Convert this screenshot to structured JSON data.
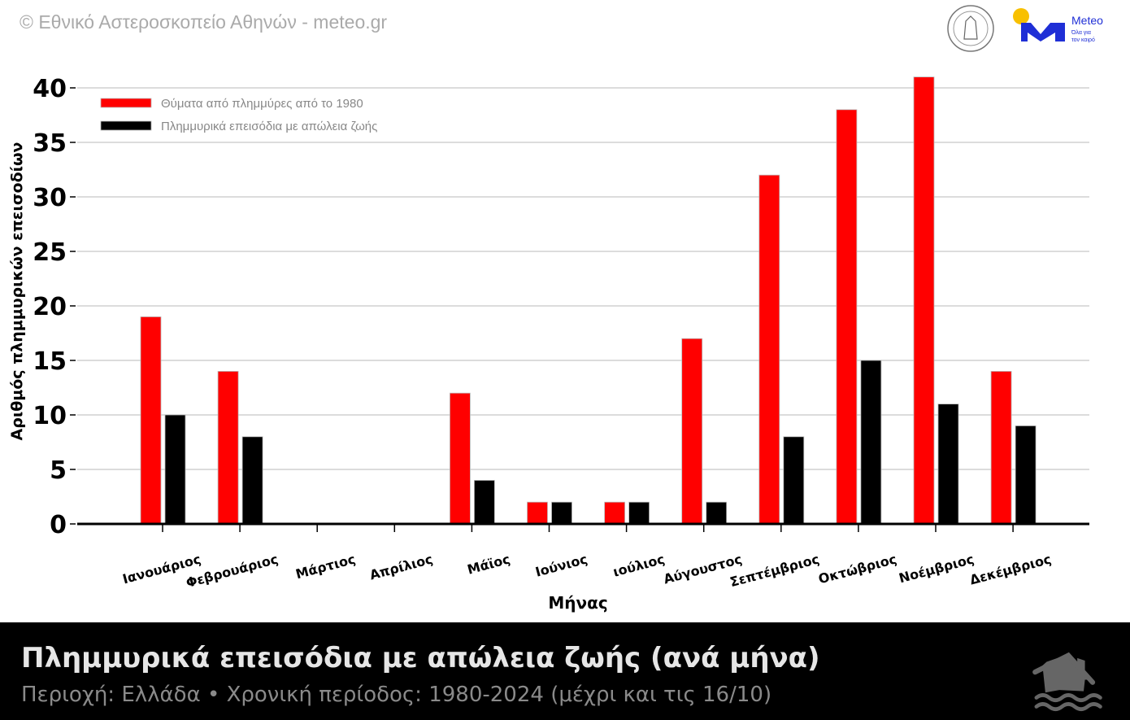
{
  "copyright": "© Εθνικό Αστεροσκοπείο Αθηνών - meteo.gr",
  "logos": {
    "observatory": "National Observatory of Athens",
    "meteo_name": "Meteo",
    "meteo_tagline_1": "Όλα για",
    "meteo_tagline_2": "τον καιρό"
  },
  "footer": {
    "title": "Πλημμυρικά επεισόδια με απώλεια ζωής (ανά μήνα)",
    "subtitle": "Περιοχή: Ελλάδα • Χρονική περίοδος: 1980-2024 (μέχρι και τις 16/10)",
    "icon": "flooded-house-icon"
  },
  "chart_data": {
    "type": "bar",
    "xlabel": "Μήνας",
    "ylabel": "Αριθμός πλημμυρικών επεισοδίων",
    "ylim": [
      0,
      40
    ],
    "yticks": [
      0,
      5,
      10,
      15,
      20,
      25,
      30,
      35,
      40
    ],
    "grid": true,
    "legend_position": "top-left",
    "categories": [
      "Ιανουάριος",
      "Φεβρουάριος",
      "Μάρτιος",
      "Απρίλιος",
      "Μάϊος",
      "Ιούνιος",
      "ιούλιος",
      "Αύγουστος",
      "Σεπτέμβριος",
      "Οκτώβριος",
      "Νοέμβριος",
      "Δεκέμβριος"
    ],
    "series": [
      {
        "name": "Θύματα από πλημμύρες από το 1980",
        "color": "#ff0000",
        "values": [
          19,
          14,
          0,
          0,
          12,
          2,
          2,
          17,
          32,
          38,
          41,
          14
        ]
      },
      {
        "name": "Πλημμυρικά επεισόδια με απώλεια ζωής",
        "color": "#000000",
        "values": [
          10,
          8,
          0,
          0,
          4,
          2,
          2,
          2,
          8,
          15,
          11,
          9
        ]
      }
    ]
  }
}
